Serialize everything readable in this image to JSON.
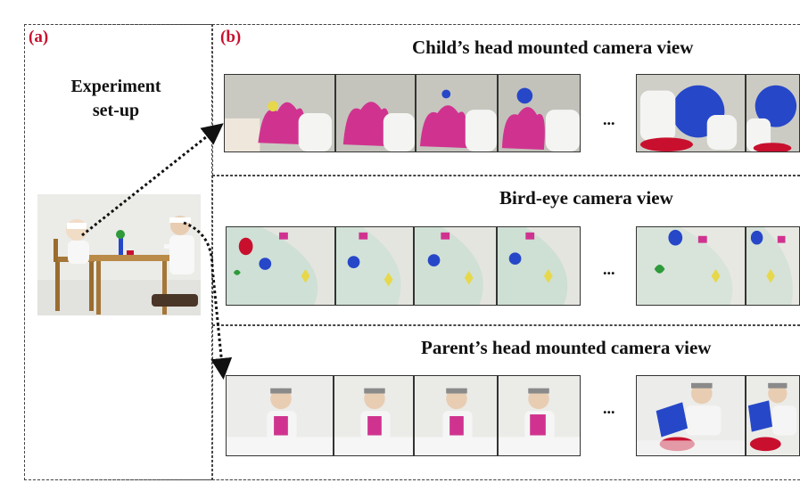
{
  "panel_a": {
    "label": "(a)",
    "title": "Experiment\nset-up"
  },
  "panel_b": {
    "label": "(b)",
    "rows": [
      {
        "title": "Child’s head mounted camera view",
        "ellipsis": "..."
      },
      {
        "title": "Bird-eye camera view",
        "ellipsis": "..."
      },
      {
        "title": "Parent’s head mounted camera view",
        "ellipsis": "..."
      }
    ]
  },
  "colors": {
    "label_red": "#c8102e",
    "toy_magenta": "#d0338f",
    "toy_blue": "#2647c8",
    "toy_green": "#2e9a3a",
    "toy_yellow": "#e6d84a",
    "bg_cream": "#f0f0ea",
    "bg_teal": "#cfe0d6"
  }
}
